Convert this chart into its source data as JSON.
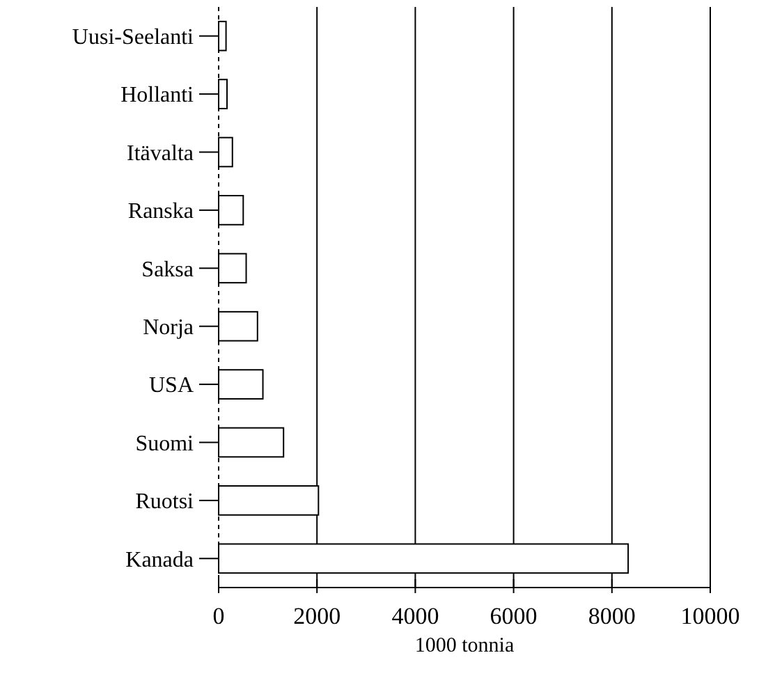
{
  "chart_data": {
    "type": "bar",
    "orientation": "horizontal",
    "xlabel": "1000 tonnia",
    "categories": [
      "Uusi-Seelanti",
      "Hollanti",
      "Itävalta",
      "Ranska",
      "Saksa",
      "Norja",
      "USA",
      "Suomi",
      "Ruotsi",
      "Kanada"
    ],
    "values": [
      150,
      170,
      280,
      500,
      560,
      790,
      900,
      1320,
      2030,
      8330
    ],
    "color": "#ffffff",
    "xlim": [
      0,
      10000
    ],
    "xticks": [
      0,
      2000,
      4000,
      6000,
      8000,
      10000
    ],
    "grid": "x"
  }
}
